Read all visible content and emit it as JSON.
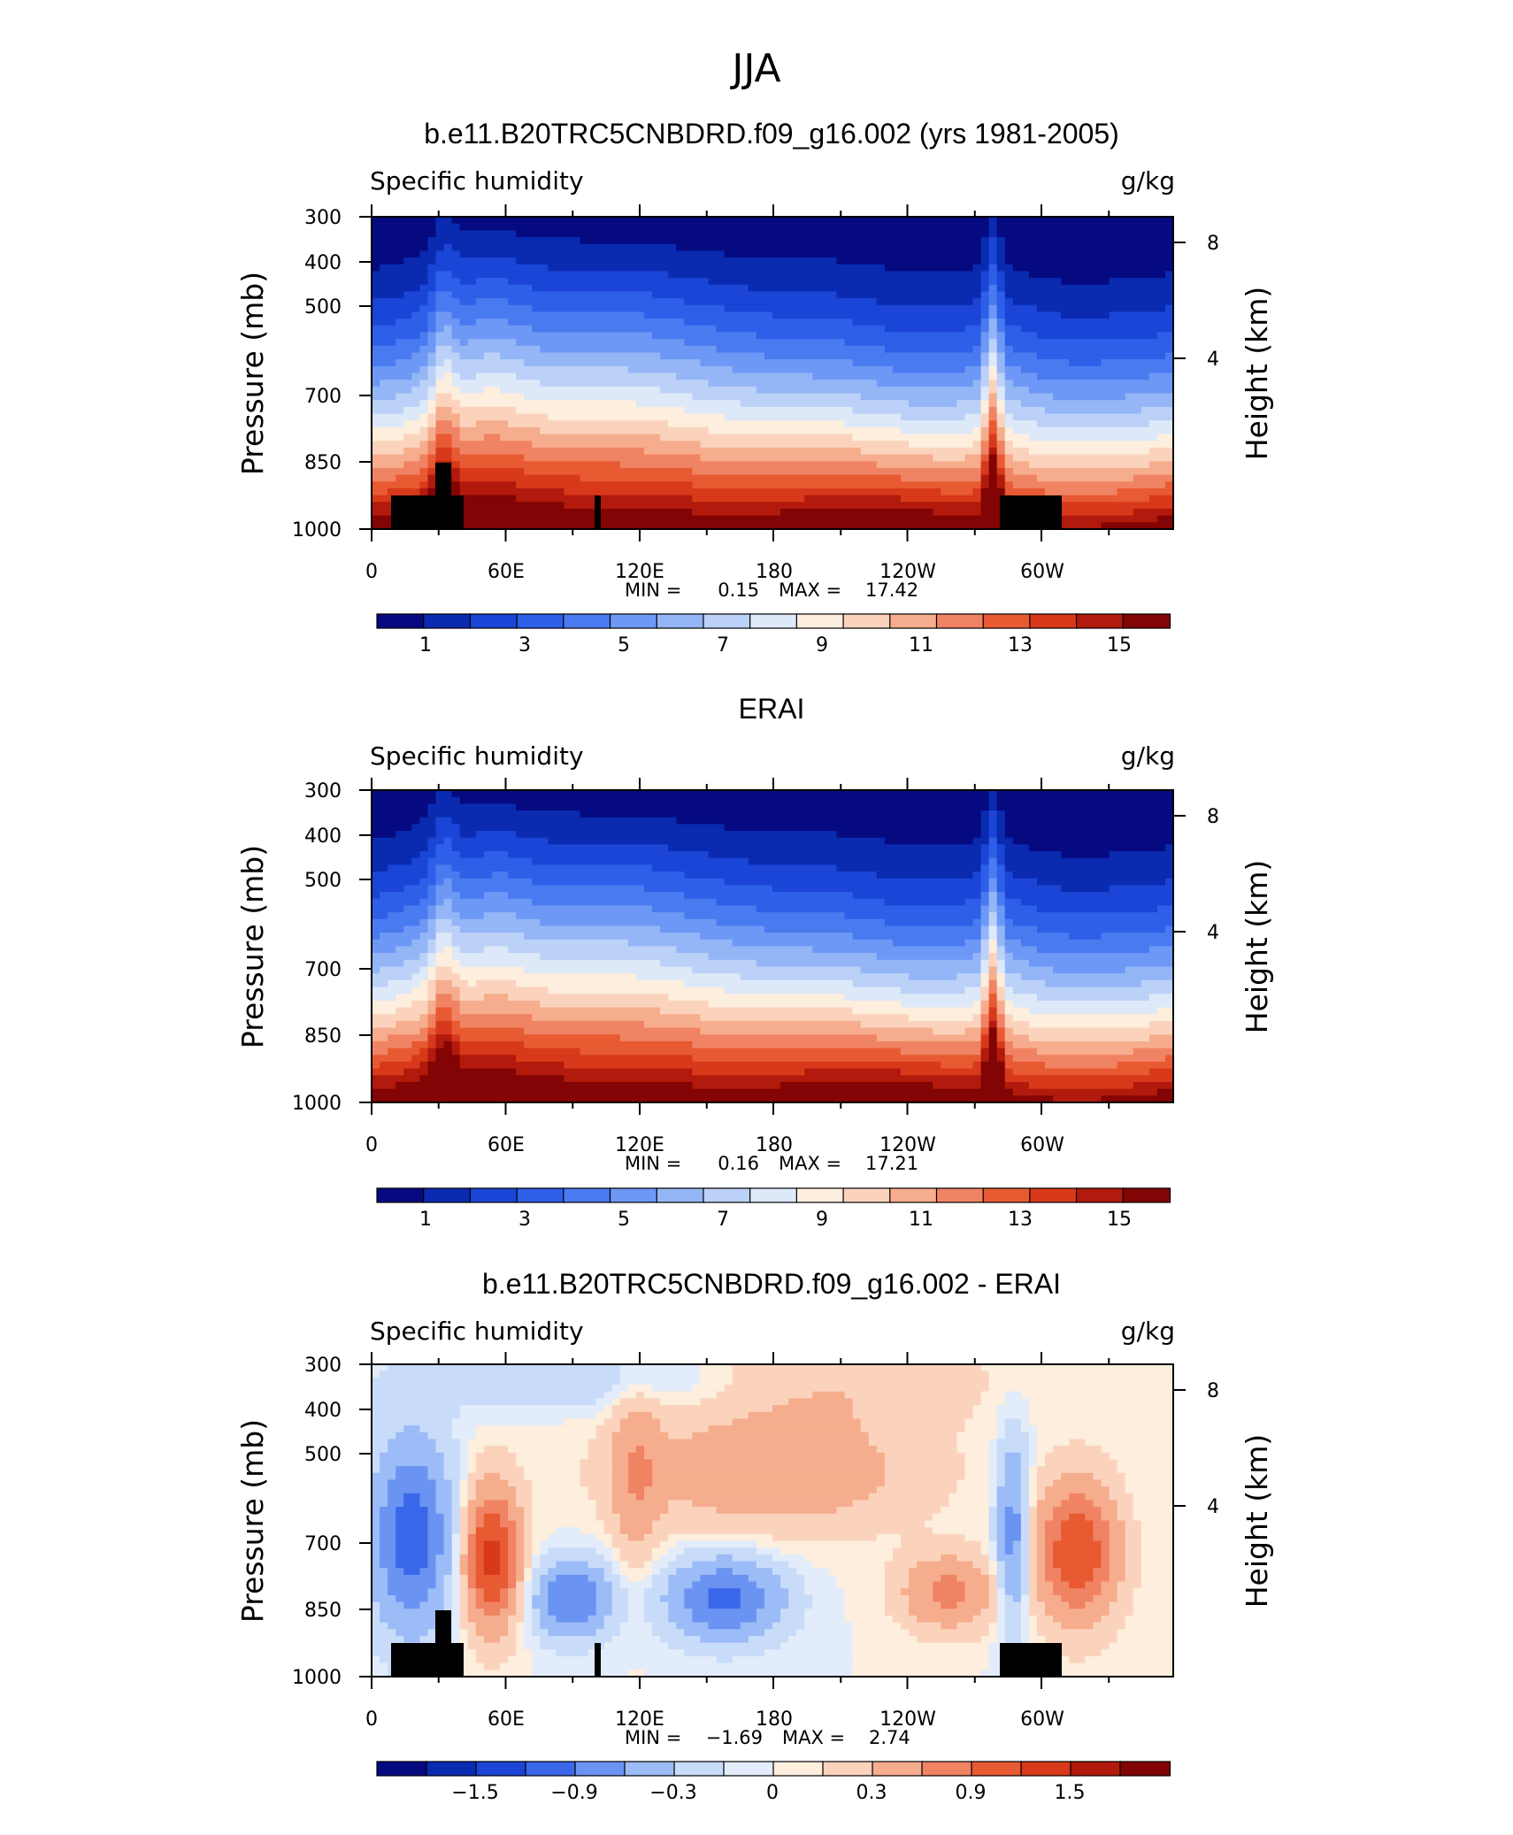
{
  "figure_title": "JJA",
  "colors": {
    "sequential": [
      "#050a80",
      "#0a2ab0",
      "#1a45d6",
      "#2e5fe8",
      "#4a7af0",
      "#6d98f5",
      "#94b6f7",
      "#bcd1f8",
      "#dde8f9",
      "#fdeedd",
      "#fbd3bd",
      "#f6ad8d",
      "#f08363",
      "#e85a32",
      "#d8391a",
      "#b11a0c",
      "#820404"
    ],
    "diverging": [
      "#050a80",
      "#0a2ab0",
      "#1a45d6",
      "#3a66ea",
      "#6a93f2",
      "#9cbcf7",
      "#c8dcf9",
      "#e2ecfa",
      "#fdeedd",
      "#fbd3bd",
      "#f6ad8d",
      "#f08363",
      "#e85a32",
      "#d8391a",
      "#b11a0c",
      "#820404"
    ]
  },
  "chart_data": [
    {
      "type": "heatmap",
      "title": "b.e11.B20TRC5CNBDRD.f09_g16.002 (yrs 1981-2005)",
      "left_string": "Specific humidity",
      "right_string": "g/kg",
      "ylabel": "Pressure (mb)",
      "ylabel_right": "Height (km)",
      "y_ticks": [
        "300",
        "400",
        "500",
        "700",
        "850",
        "1000"
      ],
      "y_ticks_right": [
        "8",
        "4"
      ],
      "x_ticks": [
        "0",
        "60E",
        "120E",
        "180",
        "120W",
        "60W"
      ],
      "min_text": "MIN =",
      "min_value": "0.15",
      "max_text": "MAX =",
      "max_value": "17.42",
      "colorbar_labels": [
        "1",
        "3",
        "5",
        "7",
        "9",
        "11",
        "13",
        "15"
      ],
      "topography": true
    },
    {
      "type": "heatmap",
      "title": "ERAI",
      "left_string": "Specific humidity",
      "right_string": "g/kg",
      "ylabel": "Pressure (mb)",
      "ylabel_right": "Height (km)",
      "y_ticks": [
        "300",
        "400",
        "500",
        "700",
        "850",
        "1000"
      ],
      "y_ticks_right": [
        "8",
        "4"
      ],
      "x_ticks": [
        "0",
        "60E",
        "120E",
        "180",
        "120W",
        "60W"
      ],
      "min_text": "MIN =",
      "min_value": "0.16",
      "max_text": "MAX =",
      "max_value": "17.21",
      "colorbar_labels": [
        "1",
        "3",
        "5",
        "7",
        "9",
        "11",
        "13",
        "15"
      ],
      "topography": false
    },
    {
      "type": "heatmap",
      "title": "b.e11.B20TRC5CNBDRD.f09_g16.002 - ERAI",
      "left_string": "Specific humidity",
      "right_string": "g/kg",
      "ylabel": "Pressure (mb)",
      "ylabel_right": "Height (km)",
      "y_ticks": [
        "300",
        "400",
        "500",
        "700",
        "850",
        "1000"
      ],
      "y_ticks_right": [
        "8",
        "4"
      ],
      "x_ticks": [
        "0",
        "60E",
        "120E",
        "180",
        "120W",
        "60W"
      ],
      "min_text": "MIN =",
      "min_value": "−1.69",
      "max_text": "MAX =",
      "max_value": "2.74",
      "colorbar_labels": [
        "−1.5",
        "−0.9",
        "−0.3",
        "0",
        "0.3",
        "0.9",
        "1.5"
      ],
      "topography": true
    }
  ]
}
